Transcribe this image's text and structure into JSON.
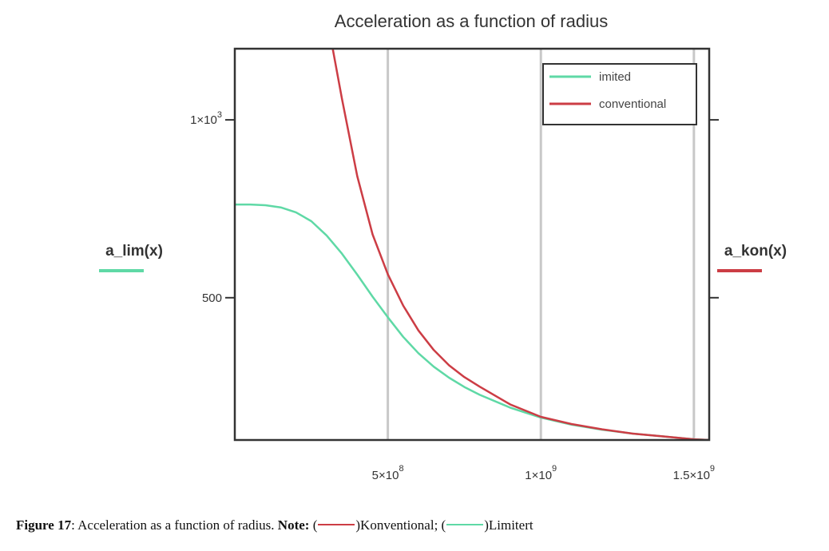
{
  "colors": {
    "limited": "#5fd9a6",
    "conventional": "#cc3d45",
    "frame": "#333333",
    "grid": "#c8c8c8"
  },
  "caption": {
    "label": "Figure 17",
    "text": ": Acceleration as a function of radius. ",
    "note_label": "Note:",
    "open1": " (",
    "conv_name": ")Konventional; (",
    "lim_name": ")Limitert"
  },
  "chart_data": {
    "type": "line",
    "title": "Acceleration as a function of radius",
    "left_axis_label": "a_lim(x)",
    "right_axis_label": "a_kon(x)",
    "xlim": [
      0,
      1550000000.0
    ],
    "ylim": [
      100,
      1200
    ],
    "x_ticks": [
      {
        "value": 500000000.0,
        "mantissa": "5×10",
        "exp": "8"
      },
      {
        "value": 1000000000.0,
        "mantissa": "1×10",
        "exp": "9"
      },
      {
        "value": 1500000000.0,
        "mantissa": "1.5×10",
        "exp": "9"
      }
    ],
    "y_ticks": [
      {
        "value": 500,
        "text": "500",
        "exp": ""
      },
      {
        "value": 1000,
        "text": "1×10",
        "exp": "3"
      }
    ],
    "x_gridlines": [
      500000000.0,
      1000000000.0,
      1500000000.0
    ],
    "legend": {
      "position": "top-right"
    },
    "series": [
      {
        "name": "imited",
        "color_key": "limited",
        "x": [
          0,
          50000000.0,
          100000000.0,
          150000000.0,
          200000000.0,
          250000000.0,
          300000000.0,
          350000000.0,
          400000000.0,
          450000000.0,
          500000000.0,
          550000000.0,
          600000000.0,
          650000000.0,
          700000000.0,
          750000000.0,
          800000000.0,
          900000000.0,
          1000000000.0,
          1100000000.0,
          1200000000.0,
          1300000000.0,
          1400000000.0,
          1500000000.0,
          1550000000.0
        ],
        "y": [
          762,
          762,
          760,
          754,
          740,
          715,
          675,
          624,
          565,
          503,
          445,
          390,
          344,
          306,
          275,
          249,
          227,
          191,
          163,
          143,
          129,
          118,
          110,
          102,
          100
        ]
      },
      {
        "name": "conventional",
        "color_key": "conventional",
        "x": [
          320000000.0,
          350000000.0,
          400000000.0,
          450000000.0,
          500000000.0,
          550000000.0,
          600000000.0,
          650000000.0,
          700000000.0,
          750000000.0,
          800000000.0,
          900000000.0,
          1000000000.0,
          1100000000.0,
          1200000000.0,
          1300000000.0,
          1400000000.0,
          1500000000.0,
          1550000000.0
        ],
        "y": [
          1200,
          1060,
          842,
          678,
          566,
          478,
          408,
          353,
          310,
          277,
          250,
          200,
          165,
          145,
          130,
          118,
          110,
          102,
          100
        ]
      }
    ]
  }
}
